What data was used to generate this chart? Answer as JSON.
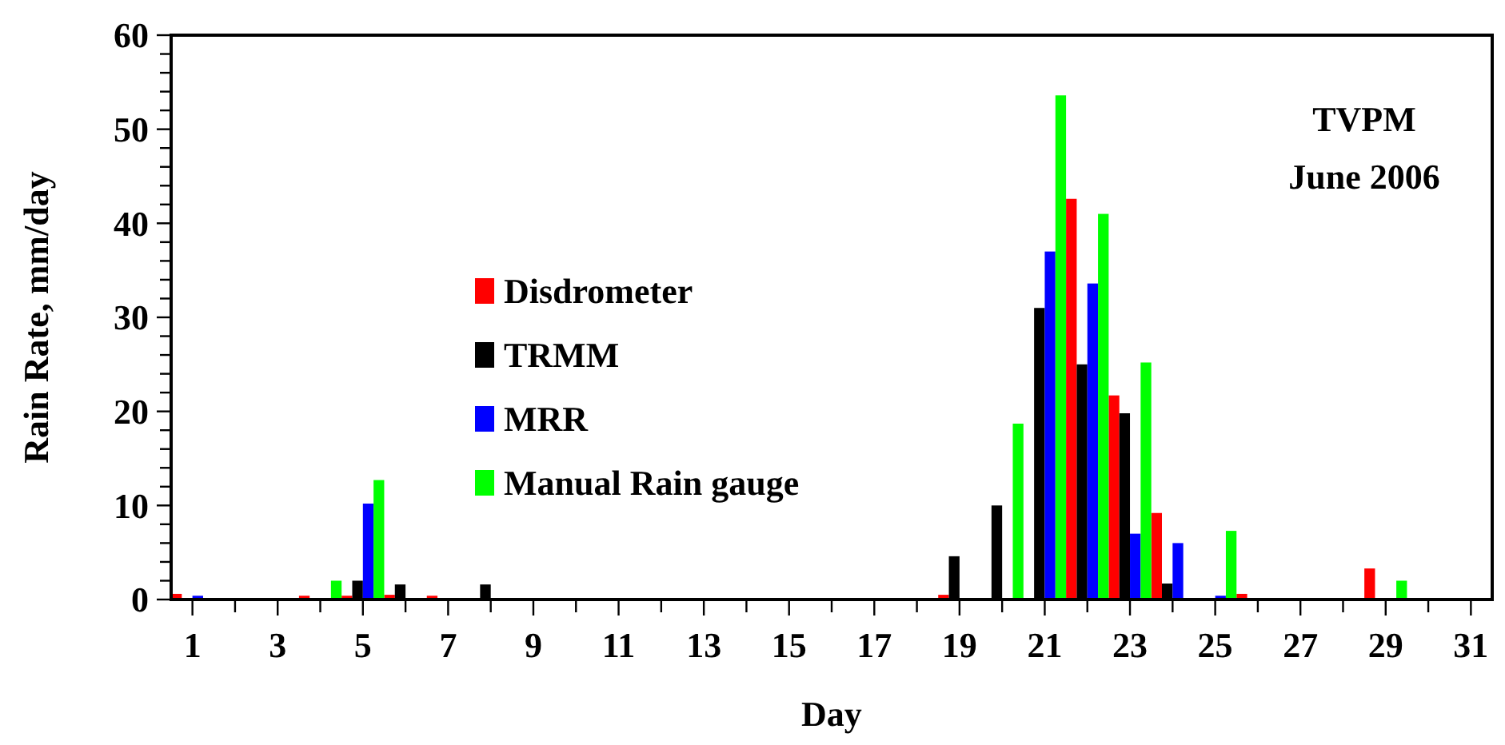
{
  "chart_data": {
    "type": "bar",
    "title": "TVPM",
    "subtitle": "June 2006",
    "xlabel": "Day",
    "ylabel": "Rain Rate, mm/day",
    "x": [
      1,
      2,
      3,
      4,
      5,
      6,
      7,
      8,
      9,
      10,
      11,
      12,
      13,
      14,
      15,
      16,
      17,
      18,
      19,
      20,
      21,
      22,
      23,
      24,
      25,
      26,
      27,
      28,
      29,
      30,
      31
    ],
    "series": [
      {
        "name": "Disdrometer",
        "color": "#ff0000",
        "values": [
          0.6,
          0,
          0,
          0.4,
          0.4,
          0.5,
          0.4,
          0,
          0,
          0,
          0,
          0,
          0,
          0,
          0,
          0,
          0,
          0,
          0.5,
          0,
          0,
          42.6,
          21.7,
          9.2,
          0,
          0.6,
          0,
          0,
          3.3,
          0,
          0
        ]
      },
      {
        "name": "TRMM",
        "color": "#000000",
        "values": [
          0,
          0,
          0,
          null,
          2.0,
          1.6,
          0,
          1.6,
          0,
          0,
          0,
          0,
          0,
          0,
          0,
          0,
          0,
          0,
          4.6,
          10,
          31,
          25,
          19.8,
          1.7,
          0,
          0,
          0,
          0,
          0,
          0,
          0
        ]
      },
      {
        "name": "MRR",
        "color": "#0000ff",
        "values": [
          0.4,
          0,
          0,
          0,
          10.2,
          0,
          null,
          0,
          0,
          0,
          0,
          0,
          0,
          0,
          0,
          0,
          0,
          0,
          null,
          0,
          37,
          33.6,
          7,
          6,
          0.4,
          0,
          0,
          0,
          0,
          0,
          0
        ]
      },
      {
        "name": "Manual Rain gauge",
        "color": "#00ff00",
        "values": [
          0,
          0,
          0,
          2.0,
          12.7,
          0,
          0,
          0,
          0,
          0,
          0,
          0,
          0,
          0,
          0,
          0,
          0,
          0,
          0,
          18.7,
          53.6,
          41,
          25.2,
          0,
          7.3,
          0,
          0,
          0,
          2.0,
          0,
          0
        ]
      }
    ],
    "xlim": [
      0.5,
      31.5
    ],
    "xticks": [
      1,
      {
        "value": 2,
        "label": null
      },
      3,
      {
        "value": 4,
        "label": null
      },
      5,
      {
        "value": 6,
        "label": null
      },
      7,
      {
        "value": 8,
        "label": null
      },
      9,
      {
        "value": 10,
        "label": null
      },
      11,
      {
        "value": 12,
        "label": null
      },
      13,
      {
        "value": 14,
        "label": null
      },
      15,
      {
        "value": 16,
        "label": null
      },
      17,
      {
        "value": 18,
        "label": null
      },
      19,
      {
        "value": 20,
        "label": null
      },
      21,
      {
        "value": 22,
        "label": null
      },
      23,
      {
        "value": 24,
        "label": null
      },
      25,
      {
        "value": 26,
        "label": null
      },
      27,
      {
        "value": 28,
        "label": null
      },
      29,
      {
        "value": 30,
        "label": null
      },
      31
    ],
    "ylim": [
      0,
      60
    ],
    "yticks": [
      0,
      {
        "value": 2,
        "label": null
      },
      {
        "value": 4,
        "label": null
      },
      {
        "value": 6,
        "label": null
      },
      {
        "value": 8,
        "label": null
      },
      10,
      {
        "value": 12,
        "label": null
      },
      {
        "value": 14,
        "label": null
      },
      {
        "value": 16,
        "label": null
      },
      {
        "value": 18,
        "label": null
      },
      20,
      {
        "value": 22,
        "label": null
      },
      {
        "value": 24,
        "label": null
      },
      {
        "value": 26,
        "label": null
      },
      {
        "value": 28,
        "label": null
      },
      30,
      {
        "value": 32,
        "label": null
      },
      {
        "value": 34,
        "label": null
      },
      {
        "value": 36,
        "label": null
      },
      {
        "value": 38,
        "label": null
      },
      40,
      {
        "value": 42,
        "label": null
      },
      {
        "value": 44,
        "label": null
      },
      {
        "value": 46,
        "label": null
      },
      {
        "value": 48,
        "label": null
      },
      50,
      {
        "value": 52,
        "label": null
      },
      {
        "value": 54,
        "label": null
      },
      {
        "value": 56,
        "label": null
      },
      {
        "value": 58,
        "label": null
      },
      60
    ],
    "grid": false,
    "legend": "left"
  }
}
